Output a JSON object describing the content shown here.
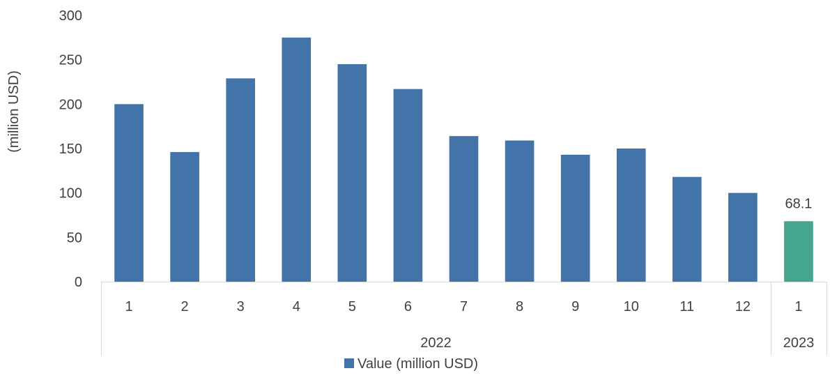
{
  "chart_data": {
    "type": "bar",
    "title": "",
    "xlabel": "",
    "ylabel": "(million USD)",
    "ylim": [
      0,
      300
    ],
    "yticks": [
      0,
      50,
      100,
      150,
      200,
      250,
      300
    ],
    "grid": false,
    "legend_position": "bottom",
    "categories": [
      "1",
      "2",
      "3",
      "4",
      "5",
      "6",
      "7",
      "8",
      "9",
      "10",
      "11",
      "12",
      "1"
    ],
    "groups": [
      {
        "label": "2022",
        "count": 12
      },
      {
        "label": "2023",
        "count": 1
      }
    ],
    "series": [
      {
        "name": "Value (million USD)",
        "color": "#4374A9",
        "values": [
          200,
          146,
          229,
          275,
          245,
          217,
          164,
          159,
          143,
          150,
          118,
          100,
          68.1
        ]
      }
    ],
    "highlight": {
      "index": 12,
      "color": "#44A68E"
    },
    "data_labels": [
      {
        "index": 12,
        "text": "68.1"
      }
    ]
  }
}
